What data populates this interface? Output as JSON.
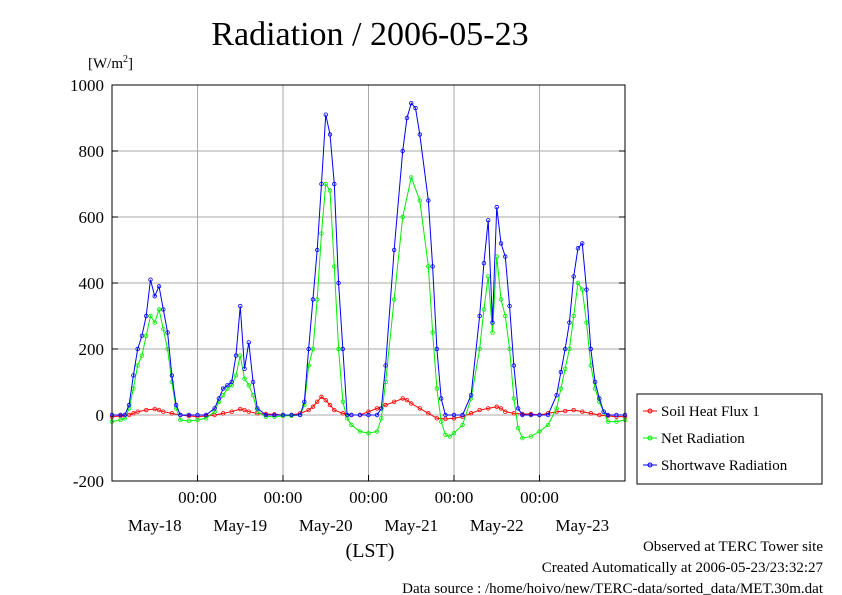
{
  "chart_data": {
    "type": "line",
    "title": "Radiation / 2006-05-23",
    "ylabel": "[W/m²]",
    "xlabel": "(LST)",
    "ylim": [
      -200,
      1000
    ],
    "y_ticks": [
      -200,
      0,
      200,
      400,
      600,
      800,
      1000
    ],
    "xlim": [
      0,
      6
    ],
    "x_unit": "days since May-18 00:00 LST",
    "x_ticks": [
      {
        "x": 1,
        "time": "00:00",
        "date": "May-19"
      },
      {
        "x": 2,
        "time": "00:00",
        "date": "May-20"
      },
      {
        "x": 3,
        "time": "00:00",
        "date": "May-21"
      },
      {
        "x": 4,
        "time": "00:00",
        "date": "May-22"
      },
      {
        "x": 5,
        "time": "00:00",
        "date": "May-23"
      }
    ],
    "x_date_labels": [
      {
        "x": 0.5,
        "label": "May-18"
      },
      {
        "x": 1.5,
        "label": "May-19"
      },
      {
        "x": 2.5,
        "label": "May-20"
      },
      {
        "x": 3.5,
        "label": "May-21"
      },
      {
        "x": 4.5,
        "label": "May-22"
      },
      {
        "x": 5.5,
        "label": "May-23"
      }
    ],
    "grid": true,
    "legend_position": "right",
    "series": [
      {
        "name": "Soil Heat Flux 1",
        "color": "#ff0000",
        "marker": "circle",
        "points": [
          [
            0,
            -5
          ],
          [
            0.1,
            -3
          ],
          [
            0.2,
            0
          ],
          [
            0.25,
            5
          ],
          [
            0.3,
            10
          ],
          [
            0.4,
            15
          ],
          [
            0.5,
            18
          ],
          [
            0.55,
            15
          ],
          [
            0.6,
            10
          ],
          [
            0.7,
            5
          ],
          [
            0.8,
            0
          ],
          [
            0.9,
            -3
          ],
          [
            1.0,
            -5
          ],
          [
            1.1,
            -3
          ],
          [
            1.2,
            0
          ],
          [
            1.3,
            5
          ],
          [
            1.4,
            10
          ],
          [
            1.5,
            18
          ],
          [
            1.55,
            15
          ],
          [
            1.6,
            10
          ],
          [
            1.7,
            5
          ],
          [
            1.8,
            3
          ],
          [
            1.9,
            2
          ],
          [
            2.0,
            0
          ],
          [
            2.1,
            0
          ],
          [
            2.2,
            5
          ],
          [
            2.3,
            15
          ],
          [
            2.35,
            25
          ],
          [
            2.4,
            40
          ],
          [
            2.45,
            55
          ],
          [
            2.5,
            45
          ],
          [
            2.55,
            30
          ],
          [
            2.6,
            15
          ],
          [
            2.7,
            5
          ],
          [
            2.8,
            0
          ],
          [
            2.9,
            0
          ],
          [
            3.0,
            10
          ],
          [
            3.1,
            20
          ],
          [
            3.2,
            30
          ],
          [
            3.3,
            40
          ],
          [
            3.4,
            50
          ],
          [
            3.45,
            45
          ],
          [
            3.5,
            35
          ],
          [
            3.6,
            20
          ],
          [
            3.7,
            5
          ],
          [
            3.8,
            -10
          ],
          [
            3.9,
            -12
          ],
          [
            4.0,
            -10
          ],
          [
            4.1,
            -5
          ],
          [
            4.2,
            5
          ],
          [
            4.3,
            15
          ],
          [
            4.4,
            20
          ],
          [
            4.5,
            25
          ],
          [
            4.55,
            20
          ],
          [
            4.6,
            10
          ],
          [
            4.7,
            5
          ],
          [
            4.8,
            3
          ],
          [
            4.9,
            3
          ],
          [
            5.0,
            0
          ],
          [
            5.1,
            5
          ],
          [
            5.2,
            10
          ],
          [
            5.3,
            12
          ],
          [
            5.4,
            15
          ],
          [
            5.5,
            10
          ],
          [
            5.6,
            5
          ],
          [
            5.7,
            0
          ],
          [
            5.8,
            -3
          ],
          [
            5.9,
            -5
          ],
          [
            6.0,
            -5
          ]
        ]
      },
      {
        "name": "Net Radiation",
        "color": "#00ee00",
        "marker": "circle",
        "points": [
          [
            0,
            -20
          ],
          [
            0.1,
            -15
          ],
          [
            0.15,
            -10
          ],
          [
            0.2,
            20
          ],
          [
            0.25,
            80
          ],
          [
            0.3,
            150
          ],
          [
            0.35,
            180
          ],
          [
            0.4,
            240
          ],
          [
            0.45,
            300
          ],
          [
            0.5,
            280
          ],
          [
            0.55,
            320
          ],
          [
            0.6,
            260
          ],
          [
            0.65,
            200
          ],
          [
            0.7,
            100
          ],
          [
            0.75,
            20
          ],
          [
            0.8,
            -15
          ],
          [
            0.9,
            -18
          ],
          [
            1.0,
            -15
          ],
          [
            1.1,
            -10
          ],
          [
            1.2,
            10
          ],
          [
            1.25,
            40
          ],
          [
            1.3,
            60
          ],
          [
            1.35,
            80
          ],
          [
            1.4,
            90
          ],
          [
            1.45,
            120
          ],
          [
            1.5,
            180
          ],
          [
            1.55,
            110
          ],
          [
            1.6,
            90
          ],
          [
            1.65,
            60
          ],
          [
            1.7,
            10
          ],
          [
            1.8,
            -5
          ],
          [
            1.9,
            -5
          ],
          [
            2.0,
            -3
          ],
          [
            2.1,
            -2
          ],
          [
            2.2,
            0
          ],
          [
            2.25,
            30
          ],
          [
            2.3,
            150
          ],
          [
            2.35,
            200
          ],
          [
            2.4,
            350
          ],
          [
            2.45,
            550
          ],
          [
            2.5,
            700
          ],
          [
            2.55,
            680
          ],
          [
            2.6,
            450
          ],
          [
            2.65,
            200
          ],
          [
            2.7,
            40
          ],
          [
            2.75,
            -10
          ],
          [
            2.8,
            -30
          ],
          [
            2.9,
            -50
          ],
          [
            3.0,
            -55
          ],
          [
            3.1,
            -50
          ],
          [
            3.15,
            -10
          ],
          [
            3.2,
            100
          ],
          [
            3.3,
            350
          ],
          [
            3.4,
            600
          ],
          [
            3.5,
            720
          ],
          [
            3.6,
            650
          ],
          [
            3.7,
            450
          ],
          [
            3.75,
            250
          ],
          [
            3.8,
            80
          ],
          [
            3.85,
            -20
          ],
          [
            3.9,
            -60
          ],
          [
            3.95,
            -65
          ],
          [
            4.0,
            -55
          ],
          [
            4.1,
            -30
          ],
          [
            4.2,
            50
          ],
          [
            4.3,
            200
          ],
          [
            4.35,
            320
          ],
          [
            4.4,
            420
          ],
          [
            4.45,
            250
          ],
          [
            4.5,
            480
          ],
          [
            4.55,
            350
          ],
          [
            4.6,
            300
          ],
          [
            4.65,
            200
          ],
          [
            4.7,
            50
          ],
          [
            4.75,
            -40
          ],
          [
            4.8,
            -70
          ],
          [
            4.9,
            -65
          ],
          [
            5.0,
            -50
          ],
          [
            5.1,
            -30
          ],
          [
            5.2,
            20
          ],
          [
            5.25,
            80
          ],
          [
            5.3,
            140
          ],
          [
            5.35,
            200
          ],
          [
            5.4,
            300
          ],
          [
            5.45,
            400
          ],
          [
            5.5,
            380
          ],
          [
            5.55,
            280
          ],
          [
            5.6,
            150
          ],
          [
            5.65,
            80
          ],
          [
            5.7,
            40
          ],
          [
            5.75,
            10
          ],
          [
            5.8,
            -20
          ],
          [
            5.9,
            -20
          ],
          [
            6.0,
            -15
          ]
        ]
      },
      {
        "name": "Shortwave Radiation",
        "color": "#0000ff",
        "marker": "circle",
        "points": [
          [
            0,
            0
          ],
          [
            0.1,
            0
          ],
          [
            0.15,
            0
          ],
          [
            0.2,
            30
          ],
          [
            0.25,
            120
          ],
          [
            0.3,
            200
          ],
          [
            0.35,
            240
          ],
          [
            0.4,
            300
          ],
          [
            0.45,
            410
          ],
          [
            0.5,
            360
          ],
          [
            0.55,
            390
          ],
          [
            0.6,
            320
          ],
          [
            0.65,
            250
          ],
          [
            0.7,
            120
          ],
          [
            0.75,
            30
          ],
          [
            0.8,
            0
          ],
          [
            0.9,
            0
          ],
          [
            1.0,
            0
          ],
          [
            1.1,
            0
          ],
          [
            1.2,
            20
          ],
          [
            1.25,
            50
          ],
          [
            1.3,
            80
          ],
          [
            1.35,
            90
          ],
          [
            1.4,
            100
          ],
          [
            1.45,
            180
          ],
          [
            1.5,
            330
          ],
          [
            1.55,
            140
          ],
          [
            1.6,
            220
          ],
          [
            1.65,
            100
          ],
          [
            1.7,
            20
          ],
          [
            1.8,
            0
          ],
          [
            1.9,
            0
          ],
          [
            2.0,
            0
          ],
          [
            2.1,
            0
          ],
          [
            2.2,
            0
          ],
          [
            2.25,
            40
          ],
          [
            2.3,
            200
          ],
          [
            2.35,
            350
          ],
          [
            2.4,
            500
          ],
          [
            2.45,
            700
          ],
          [
            2.5,
            910
          ],
          [
            2.55,
            850
          ],
          [
            2.6,
            700
          ],
          [
            2.65,
            400
          ],
          [
            2.7,
            200
          ],
          [
            2.75,
            0
          ],
          [
            2.8,
            0
          ],
          [
            2.9,
            0
          ],
          [
            3.0,
            0
          ],
          [
            3.1,
            0
          ],
          [
            3.15,
            20
          ],
          [
            3.2,
            150
          ],
          [
            3.3,
            500
          ],
          [
            3.4,
            800
          ],
          [
            3.45,
            900
          ],
          [
            3.5,
            945
          ],
          [
            3.55,
            930
          ],
          [
            3.6,
            850
          ],
          [
            3.7,
            650
          ],
          [
            3.75,
            450
          ],
          [
            3.8,
            200
          ],
          [
            3.85,
            50
          ],
          [
            3.9,
            0
          ],
          [
            4.0,
            0
          ],
          [
            4.1,
            0
          ],
          [
            4.2,
            60
          ],
          [
            4.3,
            300
          ],
          [
            4.35,
            460
          ],
          [
            4.4,
            590
          ],
          [
            4.45,
            280
          ],
          [
            4.5,
            630
          ],
          [
            4.55,
            520
          ],
          [
            4.6,
            480
          ],
          [
            4.65,
            330
          ],
          [
            4.7,
            150
          ],
          [
            4.75,
            20
          ],
          [
            4.8,
            0
          ],
          [
            4.9,
            0
          ],
          [
            5.0,
            0
          ],
          [
            5.1,
            0
          ],
          [
            5.2,
            60
          ],
          [
            5.25,
            130
          ],
          [
            5.3,
            200
          ],
          [
            5.35,
            280
          ],
          [
            5.4,
            420
          ],
          [
            5.45,
            505
          ],
          [
            5.5,
            520
          ],
          [
            5.55,
            380
          ],
          [
            5.6,
            200
          ],
          [
            5.65,
            100
          ],
          [
            5.7,
            50
          ],
          [
            5.75,
            10
          ],
          [
            5.8,
            0
          ],
          [
            5.9,
            0
          ],
          [
            6.0,
            0
          ]
        ]
      }
    ]
  },
  "footer": {
    "line1": "Observed at TERC Tower site",
    "line2": "Created Automatically at 2006-05-23/23:32:27",
    "line3": "Data source : /home/hoivo/new/TERC-data/sorted_data/MET.30m.dat"
  }
}
